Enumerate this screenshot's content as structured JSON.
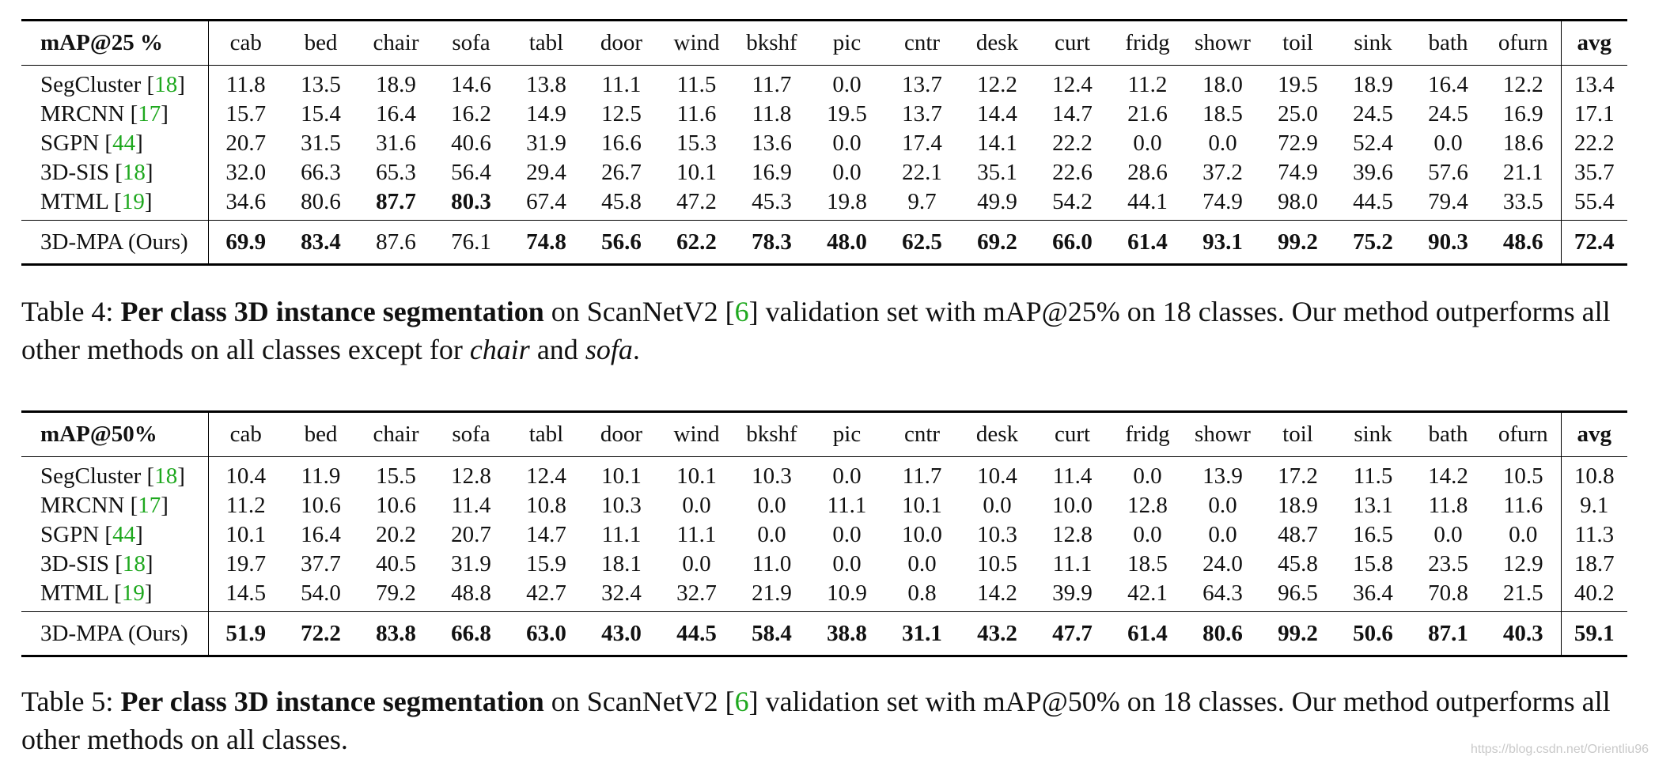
{
  "classes": [
    "cab",
    "bed",
    "chair",
    "sofa",
    "tabl",
    "door",
    "wind",
    "bkshf",
    "pic",
    "cntr",
    "desk",
    "curt",
    "fridg",
    "showr",
    "toil",
    "sink",
    "bath",
    "ofurn"
  ],
  "avg_label": "avg",
  "table4": {
    "metric_label": "mAP@25 %",
    "rows": [
      {
        "method": "SegCluster",
        "cite": "18",
        "values": [
          "11.8",
          "13.5",
          "18.9",
          "14.6",
          "13.8",
          "11.1",
          "11.5",
          "11.7",
          "0.0",
          "13.7",
          "12.2",
          "12.4",
          "11.2",
          "18.0",
          "19.5",
          "18.9",
          "16.4",
          "12.2"
        ],
        "avg": "13.4"
      },
      {
        "method": "MRCNN",
        "cite": "17",
        "values": [
          "15.7",
          "15.4",
          "16.4",
          "16.2",
          "14.9",
          "12.5",
          "11.6",
          "11.8",
          "19.5",
          "13.7",
          "14.4",
          "14.7",
          "21.6",
          "18.5",
          "25.0",
          "24.5",
          "24.5",
          "16.9"
        ],
        "avg": "17.1"
      },
      {
        "method": "SGPN",
        "cite": "44",
        "values": [
          "20.7",
          "31.5",
          "31.6",
          "40.6",
          "31.9",
          "16.6",
          "15.3",
          "13.6",
          "0.0",
          "17.4",
          "14.1",
          "22.2",
          "0.0",
          "0.0",
          "72.9",
          "52.4",
          "0.0",
          "18.6"
        ],
        "avg": "22.2"
      },
      {
        "method": "3D-SIS",
        "cite": "18",
        "values": [
          "32.0",
          "66.3",
          "65.3",
          "56.4",
          "29.4",
          "26.7",
          "10.1",
          "16.9",
          "0.0",
          "22.1",
          "35.1",
          "22.6",
          "28.6",
          "37.2",
          "74.9",
          "39.6",
          "57.6",
          "21.1"
        ],
        "avg": "35.7"
      },
      {
        "method": "MTML",
        "cite": "19",
        "values": [
          "34.6",
          "80.6",
          "87.7",
          "80.3",
          "67.4",
          "45.8",
          "47.2",
          "45.3",
          "19.8",
          "9.7",
          "49.9",
          "54.2",
          "44.1",
          "74.9",
          "98.0",
          "44.5",
          "79.4",
          "33.5"
        ],
        "avg": "55.4",
        "bold": [
          false,
          false,
          true,
          true,
          false,
          false,
          false,
          false,
          false,
          false,
          false,
          false,
          false,
          false,
          false,
          false,
          false,
          false
        ]
      }
    ],
    "ours": {
      "method": "3D-MPA (Ours)",
      "values": [
        "69.9",
        "83.4",
        "87.6",
        "76.1",
        "74.8",
        "56.6",
        "62.2",
        "78.3",
        "48.0",
        "62.5",
        "69.2",
        "66.0",
        "61.4",
        "93.1",
        "99.2",
        "75.2",
        "90.3",
        "48.6"
      ],
      "avg": "72.4",
      "bold": [
        true,
        true,
        false,
        false,
        true,
        true,
        true,
        true,
        true,
        true,
        true,
        true,
        true,
        true,
        true,
        true,
        true,
        true
      ],
      "avg_bold": true
    },
    "caption": {
      "label": "Table 4:",
      "title": "Per class 3D instance segmentation",
      "pre_cite": " on ScanNetV2 [",
      "cite": "6",
      "post_cite": "] validation set with mAP@25% on 18 classes. Our method outperforms all other methods on all classes except for ",
      "italic1": "chair",
      "mid": " and ",
      "italic2": "sofa",
      "end": "."
    }
  },
  "table5": {
    "metric_label": "mAP@50%",
    "rows": [
      {
        "method": "SegCluster",
        "cite": "18",
        "values": [
          "10.4",
          "11.9",
          "15.5",
          "12.8",
          "12.4",
          "10.1",
          "10.1",
          "10.3",
          "0.0",
          "11.7",
          "10.4",
          "11.4",
          "0.0",
          "13.9",
          "17.2",
          "11.5",
          "14.2",
          "10.5"
        ],
        "avg": "10.8"
      },
      {
        "method": "MRCNN",
        "cite": "17",
        "values": [
          "11.2",
          "10.6",
          "10.6",
          "11.4",
          "10.8",
          "10.3",
          "0.0",
          "0.0",
          "11.1",
          "10.1",
          "0.0",
          "10.0",
          "12.8",
          "0.0",
          "18.9",
          "13.1",
          "11.8",
          "11.6"
        ],
        "avg": "9.1"
      },
      {
        "method": "SGPN",
        "cite": "44",
        "values": [
          "10.1",
          "16.4",
          "20.2",
          "20.7",
          "14.7",
          "11.1",
          "11.1",
          "0.0",
          "0.0",
          "10.0",
          "10.3",
          "12.8",
          "0.0",
          "0.0",
          "48.7",
          "16.5",
          "0.0",
          "0.0"
        ],
        "avg": "11.3"
      },
      {
        "method": "3D-SIS",
        "cite": "18",
        "values": [
          "19.7",
          "37.7",
          "40.5",
          "31.9",
          "15.9",
          "18.1",
          "0.0",
          "11.0",
          "0.0",
          "0.0",
          "10.5",
          "11.1",
          "18.5",
          "24.0",
          "45.8",
          "15.8",
          "23.5",
          "12.9"
        ],
        "avg": "18.7"
      },
      {
        "method": "MTML",
        "cite": "19",
        "values": [
          "14.5",
          "54.0",
          "79.2",
          "48.8",
          "42.7",
          "32.4",
          "32.7",
          "21.9",
          "10.9",
          "0.8",
          "14.2",
          "39.9",
          "42.1",
          "64.3",
          "96.5",
          "36.4",
          "70.8",
          "21.5"
        ],
        "avg": "40.2"
      }
    ],
    "ours": {
      "method": "3D-MPA (Ours)",
      "values": [
        "51.9",
        "72.2",
        "83.8",
        "66.8",
        "63.0",
        "43.0",
        "44.5",
        "58.4",
        "38.8",
        "31.1",
        "43.2",
        "47.7",
        "61.4",
        "80.6",
        "99.2",
        "50.6",
        "87.1",
        "40.3"
      ],
      "avg": "59.1",
      "bold": [
        true,
        true,
        true,
        true,
        true,
        true,
        true,
        true,
        true,
        true,
        true,
        true,
        true,
        true,
        true,
        true,
        true,
        true
      ],
      "avg_bold": true
    },
    "caption": {
      "label": "Table 5:",
      "title": "Per class 3D instance segmentation",
      "pre_cite": " on ScanNetV2 [",
      "cite": "6",
      "post_cite": "] validation set with mAP@50% on 18 classes. Our method outperforms all other methods on all classes."
    }
  },
  "watermark": "https://blog.csdn.net/Orientliu96"
}
